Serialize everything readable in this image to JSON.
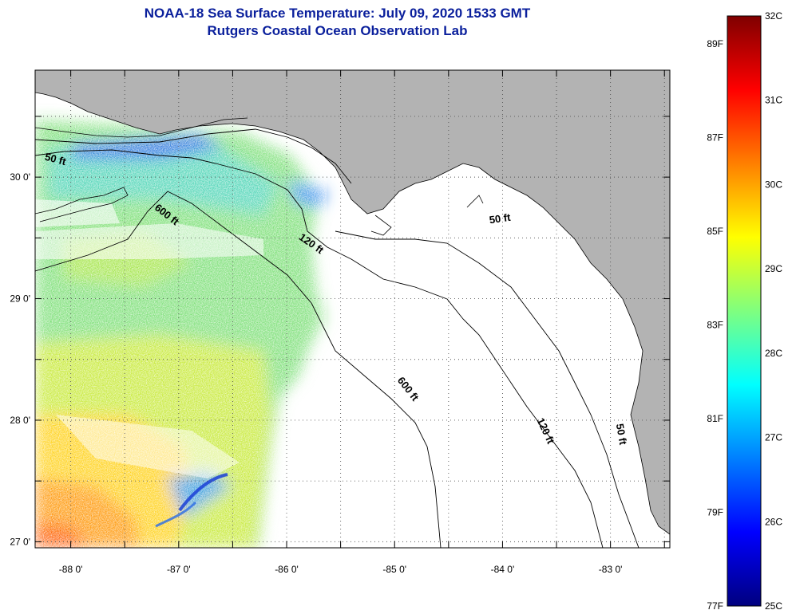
{
  "title": {
    "line1": "NOAA-18 Sea Surface Temperature:  July 09, 2020 1533 GMT",
    "line2": "Rutgers Coastal Ocean Observation Lab"
  },
  "colors": {
    "land": "#b3b3b3",
    "no_data": "#ffffff",
    "contour": "#000000",
    "title": "#0a1f9c",
    "gridline": "#555555"
  },
  "map": {
    "lon_range": [
      -88.33,
      -82.45
    ],
    "lat_range": [
      26.95,
      30.88
    ],
    "lon_ticks": [
      {
        "value": -88,
        "label": "-88 0'"
      },
      {
        "value": -87,
        "label": "-87 0'"
      },
      {
        "value": -86,
        "label": "-86 0'"
      },
      {
        "value": -85,
        "label": "-85 0'"
      },
      {
        "value": -84,
        "label": "-84 0'"
      },
      {
        "value": -83,
        "label": "-83 0'"
      }
    ],
    "lat_ticks": [
      {
        "value": 30,
        "label": "30 0'"
      },
      {
        "value": 29,
        "label": "29 0'"
      },
      {
        "value": 28,
        "label": "28 0'"
      },
      {
        "value": 27,
        "label": "27 0'"
      }
    ],
    "grid": "dotted",
    "depth_contour_labels": [
      {
        "text": "50 ft",
        "lon": -88.15,
        "lat": 30.12,
        "angle": 15
      },
      {
        "text": "600 ft",
        "lon": -87.13,
        "lat": 29.67,
        "angle": 38
      },
      {
        "text": "120 ft",
        "lon": -85.79,
        "lat": 29.43,
        "angle": 35
      },
      {
        "text": "50 ft",
        "lon": -84.02,
        "lat": 29.63,
        "angle": -8
      },
      {
        "text": "600 ft",
        "lon": -84.9,
        "lat": 28.24,
        "angle": 52
      },
      {
        "text": "120 ft",
        "lon": -83.63,
        "lat": 27.9,
        "angle": 65
      },
      {
        "text": "50 ft",
        "lon": -82.93,
        "lat": 27.88,
        "angle": 80
      }
    ]
  },
  "colorbar": {
    "min_c": 25,
    "max_c": 32,
    "celsius_labels": [
      "32C",
      "31C",
      "30C",
      "29C",
      "28C",
      "27C",
      "26C",
      "25C"
    ],
    "fahrenheit_labels": [
      {
        "label": "89F",
        "value": 89
      },
      {
        "label": "87F",
        "value": 87
      },
      {
        "label": "85F",
        "value": 85
      },
      {
        "label": "83F",
        "value": 83
      },
      {
        "label": "81F",
        "value": 81
      },
      {
        "label": "79F",
        "value": 79
      },
      {
        "label": "77F",
        "value": 77
      }
    ],
    "stops": [
      "#00007f",
      "#0000ff",
      "#007fff",
      "#00ffff",
      "#7fff7f",
      "#ffff00",
      "#ff7f00",
      "#ff0000",
      "#7f0000"
    ]
  }
}
